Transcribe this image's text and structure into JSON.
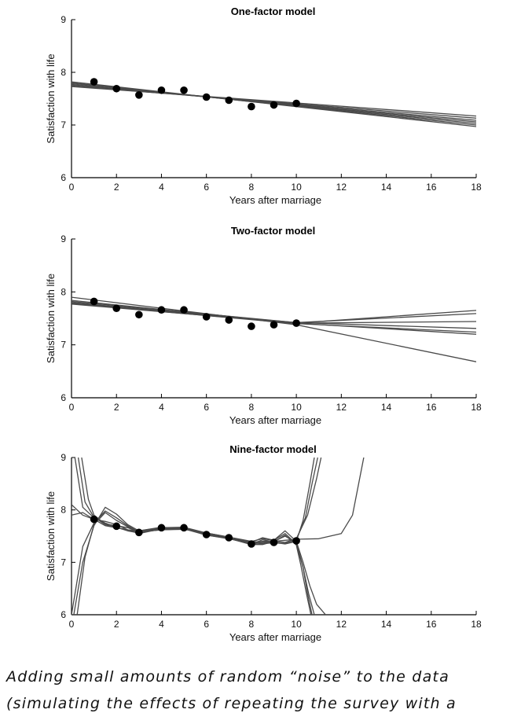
{
  "chart_data": [
    {
      "type": "line",
      "title": "One-factor model",
      "xlabel": "Years after marriage",
      "ylabel": "Satisfaction with life",
      "xlim": [
        0,
        18
      ],
      "ylim": [
        6,
        9
      ],
      "xticks": [
        0,
        2,
        4,
        6,
        8,
        10,
        12,
        14,
        16,
        18
      ],
      "yticks": [
        6,
        7,
        8,
        9
      ],
      "grid": false,
      "points": {
        "x": [
          1,
          2,
          3,
          4,
          5,
          6,
          7,
          8,
          9,
          10
        ],
        "y": [
          7.82,
          7.69,
          7.57,
          7.66,
          7.66,
          7.53,
          7.47,
          7.35,
          7.38,
          7.41
        ]
      },
      "fit_lines": [
        {
          "x": [
            0,
            18
          ],
          "y": [
            7.82,
            6.97
          ]
        },
        {
          "x": [
            0,
            18
          ],
          "y": [
            7.8,
            7.0
          ]
        },
        {
          "x": [
            0,
            18
          ],
          "y": [
            7.79,
            7.03
          ]
        },
        {
          "x": [
            0,
            18
          ],
          "y": [
            7.77,
            7.06
          ]
        },
        {
          "x": [
            0,
            18
          ],
          "y": [
            7.76,
            7.09
          ]
        },
        {
          "x": [
            0,
            18
          ],
          "y": [
            7.74,
            7.13
          ]
        },
        {
          "x": [
            0,
            18
          ],
          "y": [
            7.73,
            7.17
          ]
        }
      ]
    },
    {
      "type": "line",
      "title": "Two-factor model",
      "xlabel": "Years after marriage",
      "ylabel": "Satisfaction with life",
      "xlim": [
        0,
        18
      ],
      "ylim": [
        6,
        9
      ],
      "xticks": [
        0,
        2,
        4,
        6,
        8,
        10,
        12,
        14,
        16,
        18
      ],
      "yticks": [
        6,
        7,
        8,
        9
      ],
      "grid": false,
      "points": {
        "x": [
          1,
          2,
          3,
          4,
          5,
          6,
          7,
          8,
          9,
          10
        ],
        "y": [
          7.82,
          7.69,
          7.57,
          7.66,
          7.66,
          7.53,
          7.47,
          7.35,
          7.38,
          7.41
        ]
      },
      "fit_lines": [
        {
          "x": [
            0,
            10,
            18
          ],
          "y": [
            7.84,
            7.41,
            7.65
          ]
        },
        {
          "x": [
            0,
            10,
            18
          ],
          "y": [
            7.82,
            7.42,
            7.59
          ]
        },
        {
          "x": [
            0,
            10,
            18
          ],
          "y": [
            7.8,
            7.41,
            7.44
          ]
        },
        {
          "x": [
            0,
            10,
            18
          ],
          "y": [
            7.79,
            7.42,
            7.31
          ]
        },
        {
          "x": [
            0,
            10,
            18
          ],
          "y": [
            7.78,
            7.4,
            7.24
          ]
        },
        {
          "x": [
            0,
            10,
            18
          ],
          "y": [
            7.77,
            7.41,
            7.2
          ]
        },
        {
          "x": [
            0,
            10,
            18
          ],
          "y": [
            7.9,
            7.38,
            6.68
          ]
        }
      ]
    },
    {
      "type": "line",
      "title": "Nine-factor model",
      "xlabel": "Years after marriage",
      "ylabel": "Satisfaction with life",
      "xlim": [
        0,
        18
      ],
      "ylim": [
        6,
        9
      ],
      "xticks": [
        0,
        2,
        4,
        6,
        8,
        10,
        12,
        14,
        16,
        18
      ],
      "yticks": [
        6,
        7,
        8,
        9
      ],
      "grid": false,
      "points": {
        "x": [
          1,
          2,
          3,
          4,
          5,
          6,
          7,
          8,
          9,
          10
        ],
        "y": [
          7.82,
          7.69,
          7.57,
          7.66,
          7.66,
          7.53,
          7.47,
          7.35,
          7.38,
          7.41
        ]
      },
      "fit_lines": [
        {
          "x": [
            0.15,
            0.5,
            1,
            1.5,
            2,
            2.5,
            3,
            4,
            5,
            6,
            7,
            8,
            8.5,
            9,
            9.5,
            10,
            10.3,
            10.6,
            10.8
          ],
          "y": [
            9.0,
            8.05,
            7.85,
            7.75,
            7.67,
            7.6,
            7.56,
            7.64,
            7.66,
            7.55,
            7.47,
            7.36,
            7.38,
            7.38,
            7.35,
            7.4,
            7.8,
            8.5,
            9.0
          ]
        },
        {
          "x": [
            0.3,
            0.6,
            1,
            1.5,
            2,
            2.5,
            3,
            4,
            5,
            6,
            7,
            8,
            8.5,
            9,
            9.5,
            10,
            10.4,
            10.7,
            10.95
          ],
          "y": [
            9.0,
            8.15,
            7.86,
            7.72,
            7.66,
            7.62,
            7.6,
            7.67,
            7.64,
            7.52,
            7.46,
            7.34,
            7.36,
            7.37,
            7.36,
            7.43,
            7.85,
            8.5,
            9.0
          ]
        },
        {
          "x": [
            0.45,
            0.75,
            1,
            1.5,
            2,
            2.5,
            3,
            4,
            5,
            6,
            7,
            8,
            8.5,
            9,
            9.5,
            10,
            10.5,
            10.9,
            11.1
          ],
          "y": [
            9.0,
            8.2,
            7.9,
            7.73,
            7.7,
            7.66,
            7.58,
            7.62,
            7.63,
            7.56,
            7.48,
            7.38,
            7.4,
            7.4,
            7.38,
            7.45,
            7.9,
            8.6,
            9.0
          ]
        },
        {
          "x": [
            0,
            0.5,
            1,
            1.5,
            2,
            2.5,
            3,
            4,
            5,
            6,
            7,
            8,
            8.5,
            9,
            9.5,
            10,
            11,
            12,
            12.5,
            13
          ],
          "y": [
            7.9,
            7.95,
            7.82,
            7.7,
            7.66,
            7.62,
            7.58,
            7.65,
            7.65,
            7.53,
            7.46,
            7.37,
            7.38,
            7.4,
            7.42,
            7.44,
            7.45,
            7.55,
            7.9,
            9.0
          ]
        },
        {
          "x": [
            0,
            0.5,
            1,
            1.5,
            2,
            2.5,
            3,
            4,
            5,
            6,
            7,
            8,
            8.5,
            9,
            9.5,
            10,
            10.3,
            10.6,
            10.9,
            11.3
          ],
          "y": [
            6.0,
            7.3,
            7.75,
            7.98,
            7.85,
            7.7,
            7.58,
            7.62,
            7.64,
            7.55,
            7.48,
            7.4,
            7.45,
            7.42,
            7.6,
            7.4,
            7.0,
            6.55,
            6.2,
            6.0
          ]
        },
        {
          "x": [
            0.1,
            0.5,
            1,
            1.5,
            2,
            2.5,
            3,
            4,
            5,
            6,
            7,
            8,
            8.5,
            9,
            9.5,
            10,
            10.3,
            10.55,
            10.8
          ],
          "y": [
            6.0,
            7.0,
            7.7,
            8.05,
            7.92,
            7.72,
            7.6,
            7.66,
            7.67,
            7.56,
            7.48,
            7.38,
            7.47,
            7.42,
            7.55,
            7.35,
            6.9,
            6.4,
            6.0
          ]
        },
        {
          "x": [
            0.25,
            0.6,
            1,
            1.5,
            2,
            2.5,
            3,
            4,
            5,
            6,
            7,
            8,
            8.5,
            9,
            9.5,
            10,
            10.2,
            10.45,
            10.65
          ],
          "y": [
            6.0,
            7.1,
            7.72,
            7.95,
            7.8,
            7.68,
            7.57,
            7.63,
            7.65,
            7.52,
            7.45,
            7.35,
            7.43,
            7.39,
            7.52,
            7.33,
            6.95,
            6.4,
            6.0
          ]
        },
        {
          "x": [
            0,
            0.5,
            1,
            1.5,
            2,
            2.5,
            3,
            4,
            5,
            6,
            7,
            8,
            8.5,
            9,
            9.5,
            10,
            10.3,
            10.5,
            10.7
          ],
          "y": [
            8.1,
            7.9,
            7.82,
            7.78,
            7.72,
            7.62,
            7.55,
            7.64,
            7.64,
            7.54,
            7.46,
            7.34,
            7.34,
            7.4,
            7.5,
            7.38,
            6.9,
            6.4,
            6.0
          ]
        }
      ]
    }
  ],
  "caption": {
    "line1": "Adding small amounts of random “noise” to the data",
    "line2": "(simulating the effects of repeating the survey with a"
  }
}
